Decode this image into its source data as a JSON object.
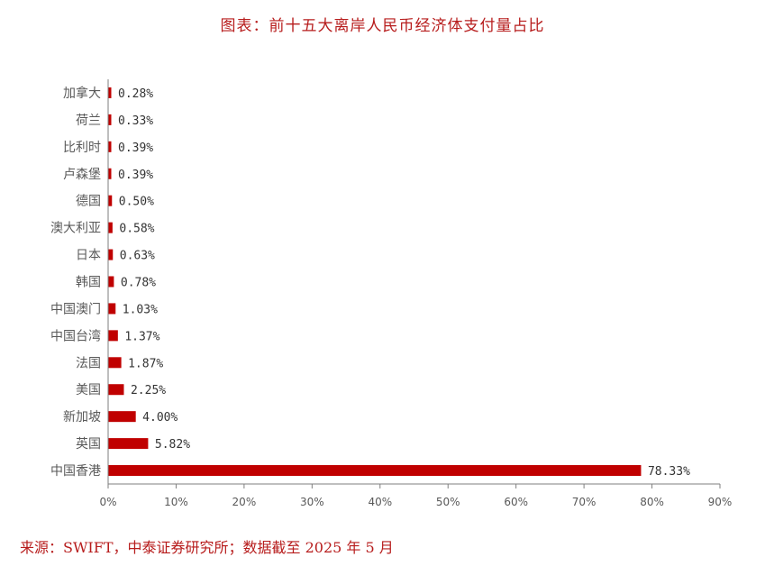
{
  "title": "图表：前十五大离岸人民币经济体支付量占比",
  "source": "来源：SWIFT，中泰证券研究所；数据截至 2025 年 5 月",
  "chart_data": {
    "type": "bar",
    "orientation": "horizontal",
    "title": "图表：前十五大离岸人民币经济体支付量占比",
    "categories": [
      "加拿大",
      "荷兰",
      "比利时",
      "卢森堡",
      "德国",
      "澳大利亚",
      "日本",
      "韩国",
      "中国澳门",
      "中国台湾",
      "法国",
      "美国",
      "新加坡",
      "英国",
      "中国香港"
    ],
    "values": [
      0.28,
      0.33,
      0.39,
      0.39,
      0.5,
      0.58,
      0.63,
      0.78,
      1.03,
      1.37,
      1.87,
      2.25,
      4.0,
      5.82,
      78.33
    ],
    "value_labels": [
      "0.28%",
      "0.33%",
      "0.39%",
      "0.39%",
      "0.50%",
      "0.58%",
      "0.63%",
      "0.78%",
      "1.03%",
      "1.37%",
      "1.87%",
      "2.25%",
      "4.00%",
      "5.82%",
      "78.33%"
    ],
    "xlim": [
      0,
      90
    ],
    "xticks": [
      0,
      10,
      20,
      30,
      40,
      50,
      60,
      70,
      80,
      90
    ],
    "xtick_labels": [
      "0%",
      "10%",
      "20%",
      "30%",
      "40%",
      "50%",
      "60%",
      "70%",
      "80%",
      "90%"
    ],
    "bar_color": "#c00000",
    "grid": false,
    "legend": "none"
  }
}
